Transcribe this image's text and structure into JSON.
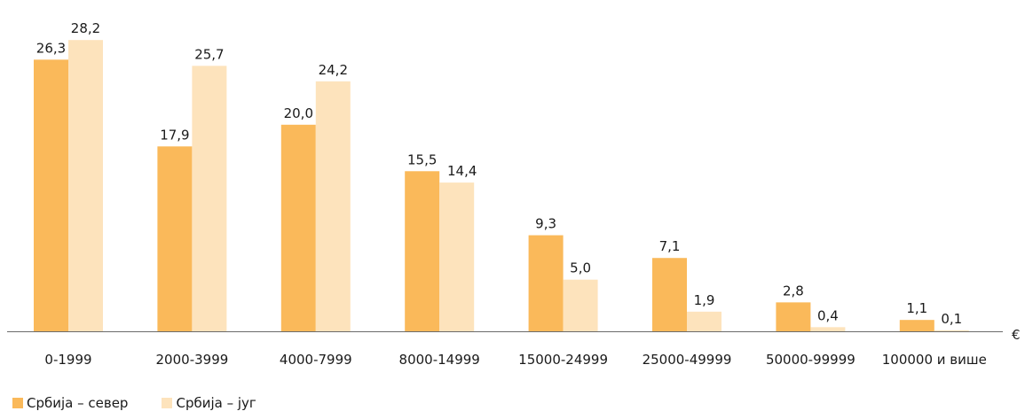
{
  "chart_data": {
    "type": "bar",
    "categories": [
      "0-1999",
      "2000-3999",
      "4000-7999",
      "8000-14999",
      "15000-24999",
      "25000-49999",
      "50000-99999",
      "100000 и више"
    ],
    "series": [
      {
        "name": "Србија – север",
        "values": [
          26.3,
          17.9,
          20.0,
          15.5,
          9.3,
          7.1,
          2.8,
          1.1
        ],
        "labels": [
          "26,3",
          "17,9",
          "20,0",
          "15,5",
          "9,3",
          "7,1",
          "2,8",
          "1,1"
        ],
        "color": "#FAB95A"
      },
      {
        "name": "Србија – југ",
        "values": [
          28.2,
          25.7,
          24.2,
          14.4,
          5.0,
          1.9,
          0.4,
          0.1
        ],
        "labels": [
          "28,2",
          "25,7",
          "24,2",
          "14,4",
          "5,0",
          "1,9",
          "0,4",
          "0,1"
        ],
        "color": "#FDE3BC"
      }
    ],
    "unit_label": "€",
    "ylim": [
      0,
      30
    ],
    "grid": false,
    "legend_position": "bottom-left"
  }
}
